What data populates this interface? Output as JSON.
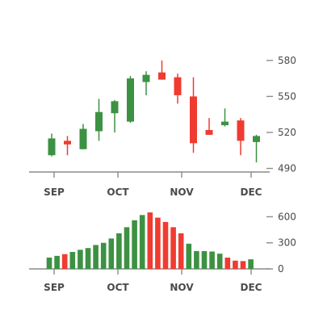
{
  "chart_data": [
    {
      "type": "candlestick",
      "x_ticks": [
        "SEP",
        "OCT",
        "NOV",
        "DEC"
      ],
      "y_ticks": [
        490,
        520,
        550,
        580
      ],
      "ylim": [
        487,
        590
      ],
      "colors": {
        "up": "#3d9142",
        "down": "#f03b31",
        "axis": "#8c8c8c"
      },
      "candles": [
        {
          "open": 501,
          "high": 519,
          "low": 500,
          "close": 515
        },
        {
          "open": 513,
          "high": 517,
          "low": 501,
          "close": 510
        },
        {
          "open": 506,
          "high": 527,
          "low": 506,
          "close": 523
        },
        {
          "open": 521,
          "high": 548,
          "low": 513,
          "close": 537
        },
        {
          "open": 536,
          "high": 547,
          "low": 520,
          "close": 546
        },
        {
          "open": 529,
          "high": 567,
          "low": 528,
          "close": 565
        },
        {
          "open": 562,
          "high": 571,
          "low": 551,
          "close": 568
        },
        {
          "open": 570,
          "high": 580,
          "low": 564,
          "close": 564
        },
        {
          "open": 566,
          "high": 569,
          "low": 544,
          "close": 551
        },
        {
          "open": 550,
          "high": 566,
          "low": 503,
          "close": 511
        },
        {
          "open": 522,
          "high": 532,
          "low": 518,
          "close": 518
        },
        {
          "open": 526,
          "high": 540,
          "low": 525,
          "close": 529
        },
        {
          "open": 530,
          "high": 532,
          "low": 501,
          "close": 513
        },
        {
          "open": 512,
          "high": 518,
          "low": 495,
          "close": 517
        }
      ]
    },
    {
      "type": "bar",
      "x_ticks": [
        "SEP",
        "OCT",
        "NOV",
        "DEC"
      ],
      "y_ticks": [
        0,
        300,
        600
      ],
      "ylim": [
        0,
        660
      ],
      "bars": [
        {
          "value": 130,
          "direction": "up"
        },
        {
          "value": 150,
          "direction": "up"
        },
        {
          "value": 170,
          "direction": "down"
        },
        {
          "value": 195,
          "direction": "up"
        },
        {
          "value": 220,
          "direction": "up"
        },
        {
          "value": 240,
          "direction": "up"
        },
        {
          "value": 275,
          "direction": "up"
        },
        {
          "value": 300,
          "direction": "up"
        },
        {
          "value": 350,
          "direction": "up"
        },
        {
          "value": 410,
          "direction": "up"
        },
        {
          "value": 480,
          "direction": "up"
        },
        {
          "value": 560,
          "direction": "up"
        },
        {
          "value": 620,
          "direction": "up"
        },
        {
          "value": 650,
          "direction": "down"
        },
        {
          "value": 590,
          "direction": "down"
        },
        {
          "value": 540,
          "direction": "down"
        },
        {
          "value": 480,
          "direction": "down"
        },
        {
          "value": 410,
          "direction": "down"
        },
        {
          "value": 290,
          "direction": "up"
        },
        {
          "value": 205,
          "direction": "up"
        },
        {
          "value": 205,
          "direction": "up"
        },
        {
          "value": 200,
          "direction": "up"
        },
        {
          "value": 175,
          "direction": "up"
        },
        {
          "value": 130,
          "direction": "down"
        },
        {
          "value": 95,
          "direction": "down"
        },
        {
          "value": 90,
          "direction": "down"
        },
        {
          "value": 110,
          "direction": "up"
        }
      ]
    }
  ]
}
